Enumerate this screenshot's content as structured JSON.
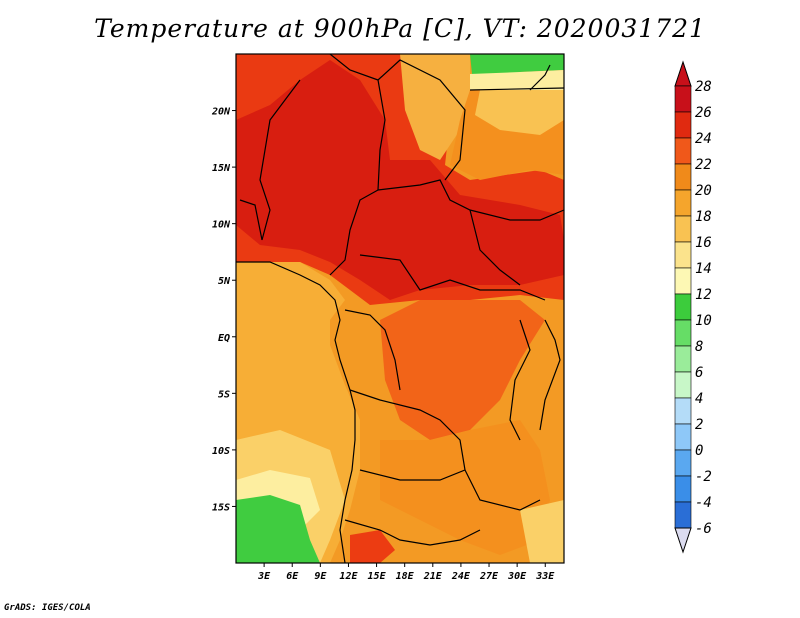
{
  "title": "Temperature at 900hPa [C], VT: 2020031721",
  "footer": "GrADS: IGES/COLA",
  "map": {
    "lon_range": [
      0,
      35
    ],
    "lat_range": [
      -20,
      25
    ],
    "lon_ticks": [
      {
        "lon": 3,
        "label": "3E"
      },
      {
        "lon": 6,
        "label": "6E"
      },
      {
        "lon": 9,
        "label": "9E"
      },
      {
        "lon": 12,
        "label": "12E"
      },
      {
        "lon": 15,
        "label": "15E"
      },
      {
        "lon": 18,
        "label": "18E"
      },
      {
        "lon": 21,
        "label": "21E"
      },
      {
        "lon": 24,
        "label": "24E"
      },
      {
        "lon": 27,
        "label": "27E"
      },
      {
        "lon": 30,
        "label": "30E"
      },
      {
        "lon": 33,
        "label": "33E"
      }
    ],
    "lat_ticks": [
      {
        "lat": 20,
        "label": "20N"
      },
      {
        "lat": 15,
        "label": "15N"
      },
      {
        "lat": 10,
        "label": "10N"
      },
      {
        "lat": 5,
        "label": "5N"
      },
      {
        "lat": 0,
        "label": "EQ"
      },
      {
        "lat": -5,
        "label": "5S"
      },
      {
        "lat": -10,
        "label": "10S"
      },
      {
        "lat": -15,
        "label": "15S"
      }
    ]
  },
  "colorbar": {
    "labels": [
      "28",
      "26",
      "24",
      "22",
      "20",
      "18",
      "16",
      "14",
      "12",
      "10",
      "8",
      "6",
      "4",
      "2",
      "0",
      "-2",
      "-4",
      "-6"
    ],
    "colors": [
      "#c8101a",
      "#e02a10",
      "#f0581a",
      "#f08a1a",
      "#f5a52c",
      "#f9c252",
      "#fbe38c",
      "#fdf8b4",
      "#3ccc3c",
      "#66dd66",
      "#9aec9a",
      "#c8f7c8",
      "#b4dcf8",
      "#8ec8f8",
      "#5aa8f0",
      "#3a8ee8",
      "#2a6ed6",
      "#1a50c0",
      "#0a30a0",
      "#0a1878"
    ],
    "arrow_colors": {
      "top": "#c8101a",
      "bottom": "#dcdcf0"
    }
  },
  "field_colors": {
    "t28": "#d82010",
    "t26": "#ec3c12",
    "t24": "#f26418",
    "t22": "#f4901e",
    "t20": "#f7ae36",
    "t18": "#fad068",
    "t16": "#fdeea0",
    "t14": "#40cc40",
    "t12": "#5cdc5c"
  }
}
